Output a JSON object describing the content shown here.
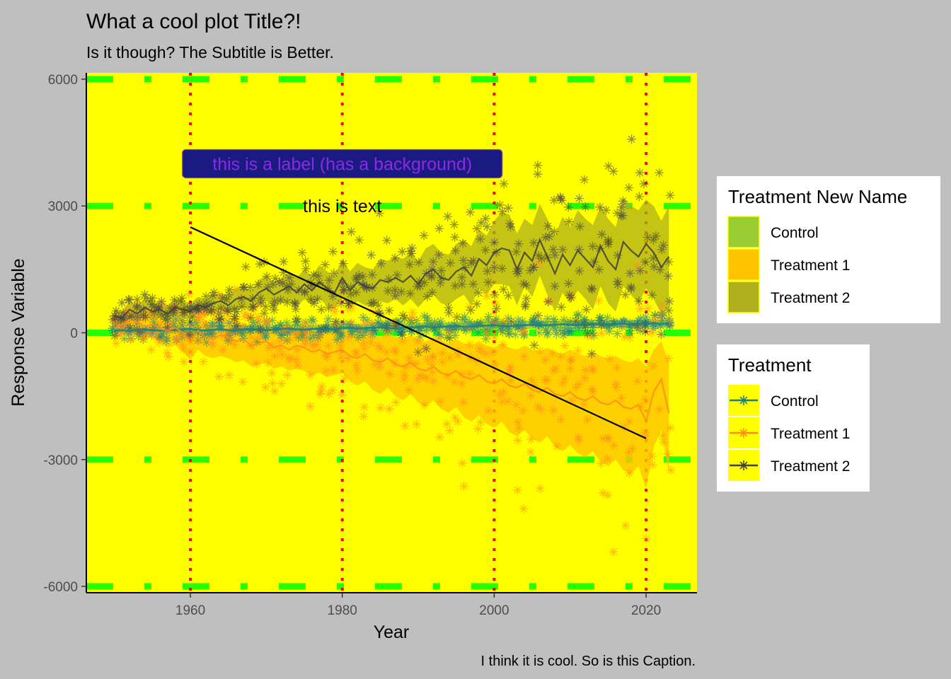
{
  "chart_data": {
    "type": "line",
    "title": "What a cool plot Title?!",
    "subtitle": "Is it though? The Subtitle is Better.",
    "caption": "I think it is cool. So is this Caption.",
    "xlabel": "Year",
    "ylabel": "Response Variable",
    "xlim": [
      1946.3,
      2026.7
    ],
    "ylim": [
      -6150,
      6150
    ],
    "x_ticks": [
      1960,
      1980,
      2000,
      2020
    ],
    "y_ticks": [
      -6000,
      -3000,
      0,
      3000,
      6000
    ],
    "x_tick_labels": [
      "1960",
      "1980",
      "2000",
      "2020"
    ],
    "y_tick_labels": [
      "-6000",
      "-3000",
      "0",
      "3000",
      "6000"
    ],
    "grid": "custom: green dashed horizontal lines at y ticks, red dotted vertical lines at x ticks",
    "panel_background": "#ffff00",
    "plot_background": "#bfbfbf",
    "annotations": [
      {
        "type": "label",
        "text": "this is a label (has a background)",
        "x": 1980,
        "y": 4000,
        "fill": "#1a1a80",
        "color": "#8a2be2"
      },
      {
        "type": "text",
        "text": "this is text",
        "x": 1980,
        "y": 3000,
        "color": "#000000"
      },
      {
        "type": "segment",
        "x": 1960,
        "y": 2500,
        "xend": 2020,
        "yend": -2500,
        "color": "#000000"
      }
    ],
    "legends": [
      {
        "title": "Treatment New Name",
        "kind": "fill",
        "position": "right",
        "entries": [
          {
            "label": "Control",
            "color": "#9acd32"
          },
          {
            "label": "Treatment 1",
            "color": "#ffc400"
          },
          {
            "label": "Treatment 2",
            "color": "#b0b01c"
          }
        ]
      },
      {
        "title": "Treatment",
        "kind": "color",
        "position": "right",
        "entries": [
          {
            "label": "Control",
            "color": "#1f7f7f"
          },
          {
            "label": "Treatment 1",
            "color": "#ff8c1a"
          },
          {
            "label": "Treatment 2",
            "color": "#404040"
          }
        ]
      }
    ],
    "x": [
      1950,
      1951,
      1952,
      1953,
      1954,
      1955,
      1956,
      1957,
      1958,
      1959,
      1960,
      1961,
      1962,
      1963,
      1964,
      1965,
      1966,
      1967,
      1968,
      1969,
      1970,
      1971,
      1972,
      1973,
      1974,
      1975,
      1976,
      1977,
      1978,
      1979,
      1980,
      1981,
      1982,
      1983,
      1984,
      1985,
      1986,
      1987,
      1988,
      1989,
      1990,
      1991,
      1992,
      1993,
      1994,
      1995,
      1996,
      1997,
      1998,
      1999,
      2000,
      2001,
      2002,
      2003,
      2004,
      2005,
      2006,
      2007,
      2008,
      2009,
      2010,
      2011,
      2012,
      2013,
      2014,
      2015,
      2016,
      2017,
      2018,
      2019,
      2020,
      2021,
      2022,
      2023
    ],
    "series": [
      {
        "name": "Control",
        "line_color": "#1f7f7f",
        "ribbon_color": "#9acd32",
        "values": [
          50,
          60,
          40,
          70,
          80,
          60,
          50,
          60,
          70,
          80,
          90,
          60,
          50,
          70,
          80,
          60,
          50,
          80,
          90,
          70,
          60,
          80,
          90,
          100,
          80,
          70,
          90,
          100,
          90,
          80,
          110,
          120,
          100,
          110,
          120,
          130,
          110,
          100,
          120,
          130,
          140,
          150,
          130,
          140,
          150,
          160,
          140,
          150,
          160,
          170,
          180,
          160,
          150,
          170,
          180,
          190,
          170,
          180,
          190,
          200,
          190,
          180,
          200,
          210,
          200,
          190,
          210,
          220,
          200,
          210,
          220,
          230,
          210,
          220
        ],
        "lower": [
          -50,
          -40,
          -60,
          -30,
          -20,
          -40,
          -50,
          -40,
          -30,
          -20,
          -10,
          -40,
          -50,
          -30,
          -20,
          -40,
          -50,
          -20,
          -10,
          -30,
          -40,
          -20,
          -10,
          0,
          -20,
          -30,
          -10,
          0,
          -10,
          -20,
          10,
          20,
          0,
          10,
          20,
          30,
          10,
          0,
          20,
          30,
          40,
          50,
          30,
          40,
          50,
          60,
          40,
          50,
          60,
          70,
          80,
          60,
          50,
          70,
          80,
          90,
          70,
          80,
          90,
          100,
          90,
          80,
          100,
          110,
          100,
          90,
          110,
          120,
          100,
          110,
          120,
          130,
          110,
          120
        ],
        "upper": [
          150,
          160,
          140,
          170,
          180,
          160,
          150,
          160,
          170,
          180,
          190,
          160,
          150,
          170,
          180,
          160,
          150,
          180,
          190,
          170,
          160,
          180,
          190,
          200,
          180,
          170,
          190,
          200,
          190,
          180,
          210,
          220,
          200,
          210,
          220,
          230,
          210,
          200,
          220,
          230,
          240,
          250,
          230,
          240,
          250,
          260,
          240,
          250,
          260,
          270,
          280,
          260,
          250,
          270,
          280,
          290,
          270,
          280,
          290,
          300,
          290,
          280,
          300,
          310,
          300,
          290,
          310,
          320,
          300,
          310,
          320,
          330,
          310,
          320
        ]
      },
      {
        "name": "Treatment 1",
        "line_color": "#ff8c1a",
        "ribbon_color": "#ffc400",
        "values": [
          100,
          200,
          300,
          250,
          150,
          200,
          100,
          50,
          120,
          0,
          -200,
          50,
          -100,
          -150,
          -50,
          -100,
          -200,
          -150,
          -300,
          -250,
          -200,
          -350,
          -300,
          -400,
          -300,
          -350,
          -450,
          -400,
          -500,
          -450,
          -400,
          -550,
          -600,
          -500,
          -650,
          -700,
          -600,
          -750,
          -800,
          -700,
          -850,
          -900,
          -800,
          -950,
          -1000,
          -900,
          -1050,
          -1100,
          -1000,
          -1150,
          -1200,
          -1100,
          -1250,
          -1300,
          -1200,
          -1350,
          -1400,
          -1300,
          -1450,
          -1500,
          -1400,
          -1550,
          -1600,
          -1500,
          -1650,
          -1700,
          -1600,
          -1750,
          -1800,
          -1700,
          -2100,
          -1400,
          -1100,
          -1900
        ],
        "lower": [
          -150,
          -50,
          0,
          -50,
          -150,
          -100,
          -250,
          -350,
          -300,
          -450,
          -650,
          -400,
          -550,
          -600,
          -550,
          -600,
          -700,
          -650,
          -800,
          -750,
          -700,
          -850,
          -800,
          -900,
          -850,
          -900,
          -1000,
          -950,
          -1050,
          -1000,
          -950,
          -1150,
          -1250,
          -1150,
          -1350,
          -1450,
          -1300,
          -1500,
          -1600,
          -1450,
          -1650,
          -1750,
          -1600,
          -1800,
          -1900,
          -1750,
          -2000,
          -2100,
          -1950,
          -2150,
          -2250,
          -2100,
          -2350,
          -2450,
          -2300,
          -2500,
          -2600,
          -2450,
          -2700,
          -2800,
          -2650,
          -2850,
          -2950,
          -2800,
          -3050,
          -3150,
          -3000,
          -3250,
          -3350,
          -3150,
          -3700,
          -2700,
          -2300,
          -3300
        ],
        "upper": [
          350,
          450,
          550,
          500,
          450,
          500,
          400,
          400,
          450,
          350,
          200,
          400,
          300,
          250,
          350,
          300,
          200,
          250,
          150,
          200,
          250,
          100,
          150,
          50,
          150,
          100,
          50,
          100,
          0,
          50,
          100,
          0,
          -50,
          50,
          -50,
          -100,
          0,
          -100,
          -150,
          -50,
          -150,
          -200,
          -100,
          -200,
          -250,
          -150,
          -250,
          -300,
          -200,
          -300,
          -350,
          -250,
          -350,
          -400,
          -300,
          -400,
          -450,
          -350,
          -450,
          -500,
          -400,
          -500,
          -550,
          -450,
          -550,
          -600,
          -550,
          -650,
          -700,
          -600,
          -800,
          -400,
          -200,
          -700
        ]
      },
      {
        "name": "Treatment 2",
        "line_color": "#404040",
        "ribbon_color": "#b0b01c",
        "values": [
          400,
          350,
          550,
          450,
          600,
          500,
          550,
          450,
          600,
          550,
          500,
          650,
          600,
          700,
          750,
          650,
          800,
          850,
          750,
          950,
          1050,
          900,
          1000,
          1100,
          950,
          1150,
          1000,
          1200,
          1050,
          950,
          1300,
          1000,
          1200,
          1100,
          1050,
          1250,
          1200,
          1300,
          1200,
          1350,
          1150,
          1400,
          1500,
          1300,
          1250,
          1450,
          1550,
          1350,
          1750,
          1600,
          1900,
          2000,
          1950,
          1500,
          1900,
          1700,
          2200,
          1800,
          1400,
          1850,
          1600,
          1950,
          1750,
          1550,
          2050,
          1700,
          1500,
          2150,
          1950,
          1800,
          2100,
          1900,
          1550,
          1800
        ],
        "lower": [
          250,
          200,
          350,
          250,
          400,
          300,
          350,
          250,
          400,
          350,
          300,
          450,
          400,
          500,
          550,
          450,
          550,
          600,
          500,
          650,
          750,
          600,
          700,
          750,
          600,
          800,
          650,
          800,
          650,
          550,
          850,
          550,
          750,
          650,
          600,
          750,
          700,
          800,
          650,
          800,
          600,
          800,
          900,
          700,
          650,
          800,
          900,
          650,
          1050,
          900,
          1150,
          1150,
          1100,
          650,
          1100,
          850,
          1350,
          900,
          500,
          950,
          700,
          1000,
          800,
          550,
          1100,
          700,
          500,
          1100,
          900,
          700,
          1050,
          800,
          450,
          600
        ],
        "upper": [
          550,
          500,
          750,
          650,
          800,
          700,
          750,
          650,
          800,
          750,
          700,
          850,
          800,
          900,
          950,
          850,
          1050,
          1100,
          1000,
          1250,
          1350,
          1200,
          1300,
          1450,
          1300,
          1500,
          1350,
          1600,
          1450,
          1350,
          1750,
          1450,
          1650,
          1550,
          1500,
          1750,
          1700,
          1800,
          1750,
          1900,
          1700,
          2000,
          2100,
          1900,
          1850,
          2100,
          2200,
          2050,
          2450,
          2300,
          2650,
          2850,
          2800,
          2350,
          2700,
          2550,
          3050,
          2700,
          2300,
          2750,
          2500,
          2900,
          2700,
          2550,
          3000,
          2700,
          2500,
          3200,
          3000,
          2900,
          3150,
          3000,
          2650,
          3000
        ]
      }
    ]
  }
}
